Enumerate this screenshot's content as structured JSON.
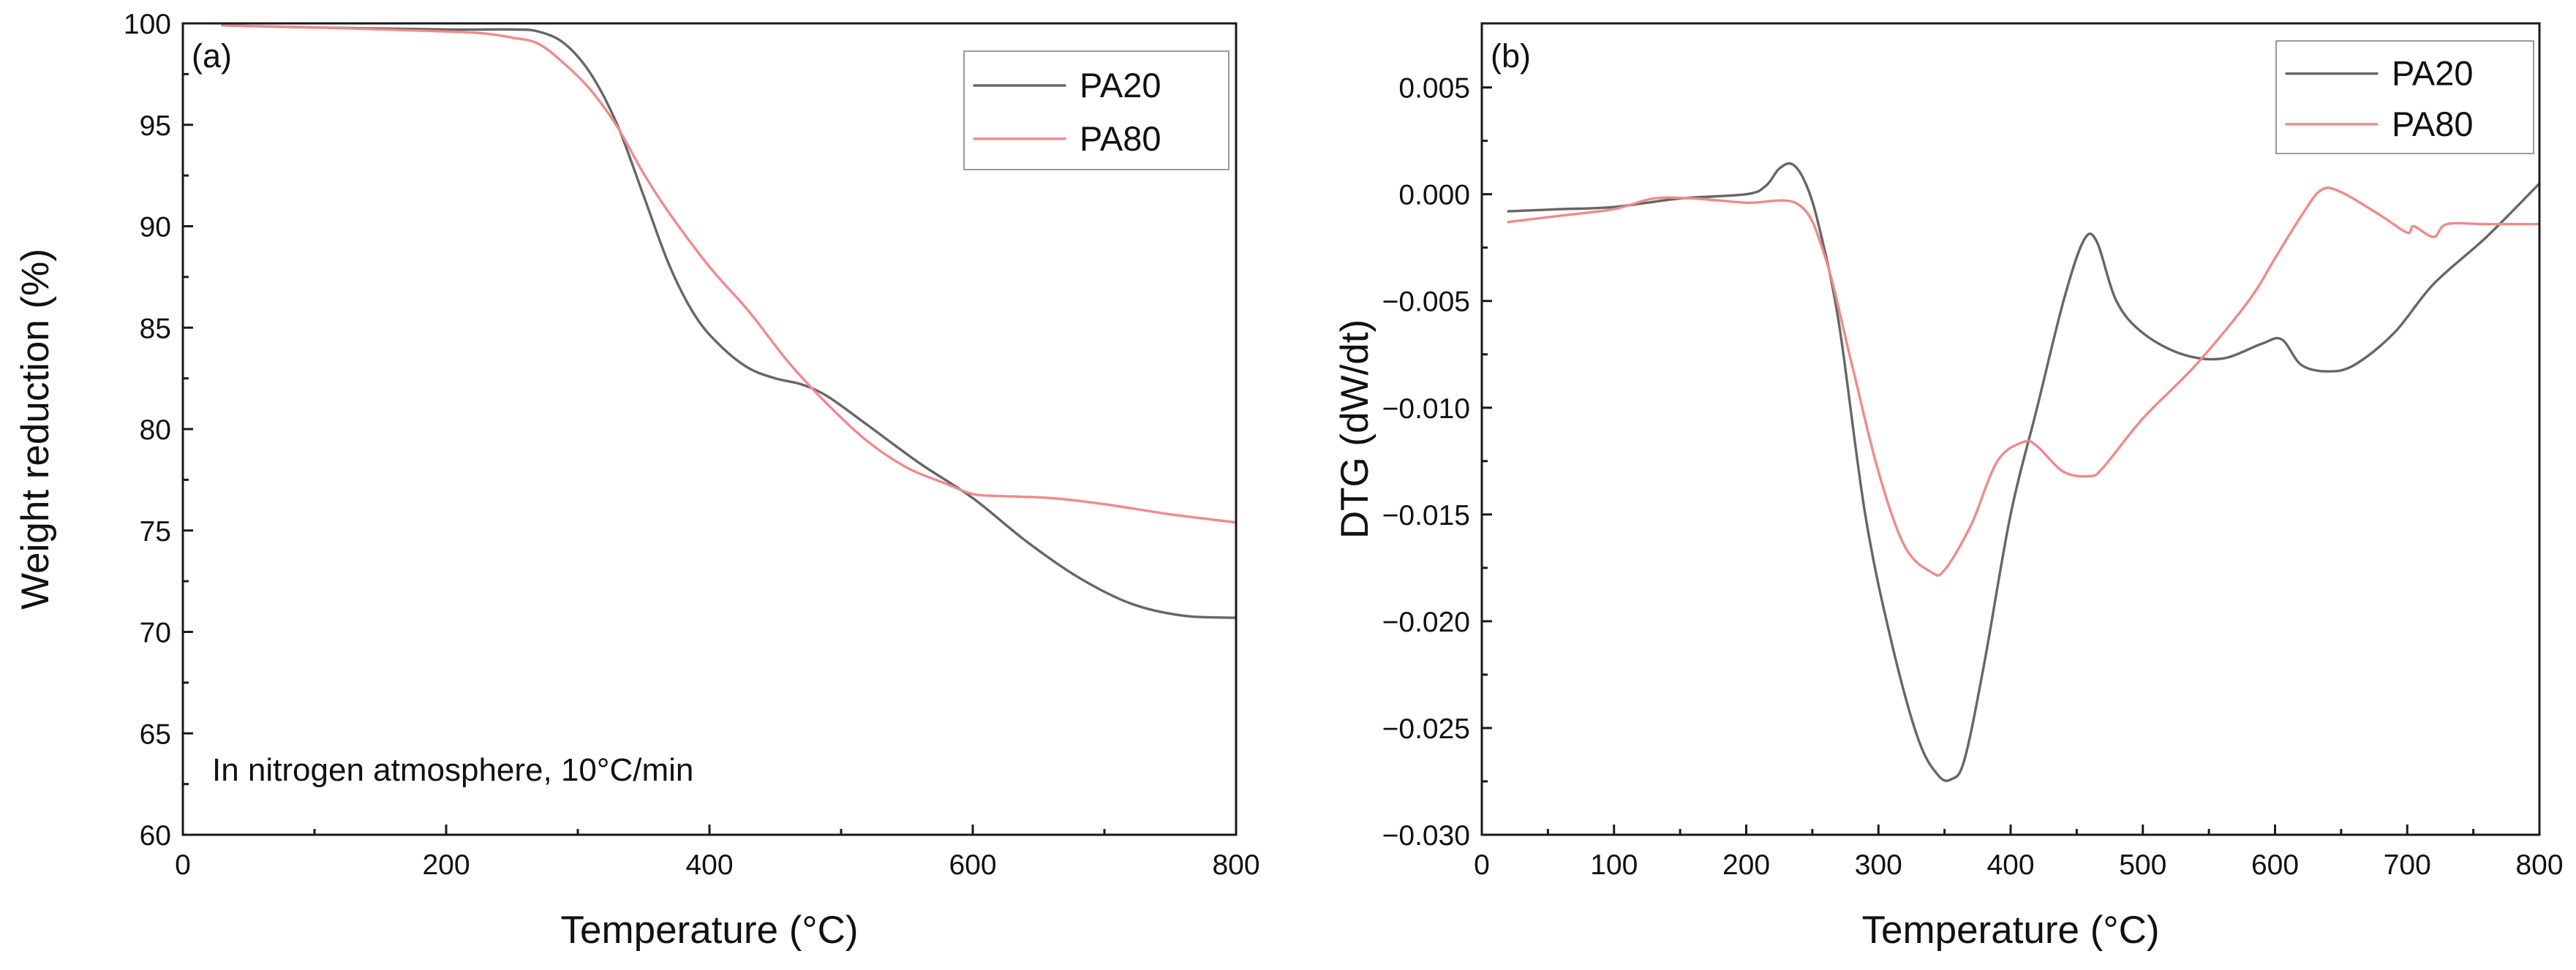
{
  "colors": {
    "PA20": "#666666",
    "PA80": "#f08a8a",
    "axis": "#1a1a1a"
  },
  "chart_data": [
    {
      "id": "a",
      "type": "line",
      "panel_label": "(a)",
      "title": "",
      "xlabel": "Temperature (°C)",
      "ylabel": "Weight reduction (%)",
      "xlim": [
        0,
        800
      ],
      "ylim": [
        60,
        100
      ],
      "xticks": [
        0,
        200,
        400,
        600,
        800
      ],
      "yticks": [
        60,
        65,
        70,
        75,
        80,
        85,
        90,
        95,
        100
      ],
      "xtick_labels": [
        "0",
        "200",
        "400",
        "600",
        "800"
      ],
      "ytick_labels": [
        "60",
        "65",
        "70",
        "75",
        "80",
        "85",
        "90",
        "95",
        "100"
      ],
      "grid": false,
      "legend": {
        "position": "top-right",
        "entries": [
          "PA20",
          "PA80"
        ]
      },
      "annotation": "In nitrogen atmosphere, 10°C/min",
      "series": [
        {
          "name": "PA20",
          "color": "#666666",
          "x": [
            30,
            100,
            200,
            250,
            270,
            290,
            310,
            330,
            350,
            370,
            390,
            410,
            430,
            450,
            470,
            490,
            520,
            560,
            600,
            640,
            680,
            720,
            760,
            800
          ],
          "y": [
            99.9,
            99.8,
            99.7,
            99.7,
            99.6,
            99.0,
            97.5,
            95.0,
            91.5,
            88.0,
            85.5,
            84.0,
            83.0,
            82.5,
            82.2,
            81.6,
            80.2,
            78.3,
            76.6,
            74.5,
            72.7,
            71.4,
            70.8,
            70.7
          ]
        },
        {
          "name": "PA80",
          "color": "#f08a8a",
          "x": [
            30,
            100,
            200,
            230,
            250,
            270,
            290,
            310,
            330,
            350,
            370,
            400,
            430,
            460,
            490,
            520,
            550,
            580,
            600,
            620,
            660,
            700,
            750,
            800
          ],
          "y": [
            99.9,
            99.8,
            99.6,
            99.5,
            99.3,
            99.0,
            98.0,
            96.7,
            94.9,
            92.6,
            90.6,
            88.0,
            85.8,
            83.3,
            81.2,
            79.4,
            78.1,
            77.3,
            76.8,
            76.7,
            76.6,
            76.3,
            75.8,
            75.4
          ]
        }
      ]
    },
    {
      "id": "b",
      "type": "line",
      "panel_label": "(b)",
      "title": "",
      "xlabel": "Temperature (°C)",
      "ylabel": "DTG (dW/dt)",
      "xlim": [
        0,
        800
      ],
      "ylim": [
        -0.03,
        0.008
      ],
      "xticks": [
        0,
        100,
        200,
        300,
        400,
        500,
        600,
        700,
        800
      ],
      "yticks": [
        -0.03,
        -0.025,
        -0.02,
        -0.015,
        -0.01,
        -0.005,
        0.0,
        0.005
      ],
      "xtick_labels": [
        "0",
        "100",
        "200",
        "300",
        "400",
        "500",
        "600",
        "700",
        "800"
      ],
      "ytick_labels": [
        "−0.030",
        "−0.025",
        "−0.020",
        "−0.015",
        "−0.010",
        "−0.005",
        "0.000",
        "0.005"
      ],
      "grid": false,
      "legend": {
        "position": "top-right",
        "entries": [
          "PA20",
          "PA80"
        ]
      },
      "series": [
        {
          "name": "PA20",
          "color": "#666666",
          "x": [
            20,
            60,
            100,
            150,
            200,
            215,
            225,
            235,
            245,
            255,
            270,
            290,
            310,
            330,
            345,
            355,
            365,
            380,
            400,
            420,
            440,
            455,
            465,
            480,
            500,
            530,
            560,
            590,
            605,
            620,
            640,
            660,
            690,
            720,
            760,
            800
          ],
          "y": [
            -0.0008,
            -0.0007,
            -0.0006,
            -0.0002,
            0.0,
            0.0004,
            0.0012,
            0.0014,
            0.0005,
            -0.0015,
            -0.006,
            -0.015,
            -0.021,
            -0.0255,
            -0.0272,
            -0.0274,
            -0.0265,
            -0.022,
            -0.015,
            -0.01,
            -0.005,
            -0.0022,
            -0.0022,
            -0.005,
            -0.0065,
            -0.0075,
            -0.0077,
            -0.007,
            -0.0068,
            -0.008,
            -0.0083,
            -0.008,
            -0.0065,
            -0.0042,
            -0.002,
            0.0005
          ]
        },
        {
          "name": "PA80",
          "color": "#f08a8a",
          "x": [
            20,
            60,
            100,
            130,
            160,
            200,
            240,
            260,
            280,
            300,
            320,
            340,
            350,
            370,
            390,
            410,
            420,
            440,
            460,
            470,
            500,
            540,
            580,
            600,
            620,
            635,
            650,
            680,
            700,
            705,
            720,
            730,
            760,
            800
          ],
          "y": [
            -0.0013,
            -0.001,
            -0.0007,
            -0.0002,
            -0.0002,
            -0.0004,
            -0.0005,
            -0.003,
            -0.008,
            -0.013,
            -0.0165,
            -0.0177,
            -0.0176,
            -0.0155,
            -0.0125,
            -0.0116,
            -0.0118,
            -0.013,
            -0.0132,
            -0.0128,
            -0.0105,
            -0.008,
            -0.005,
            -0.003,
            -0.001,
            0.0002,
            0.0001,
            -0.001,
            -0.0018,
            -0.0015,
            -0.002,
            -0.0014,
            -0.0014,
            -0.0014
          ]
        }
      ]
    }
  ]
}
